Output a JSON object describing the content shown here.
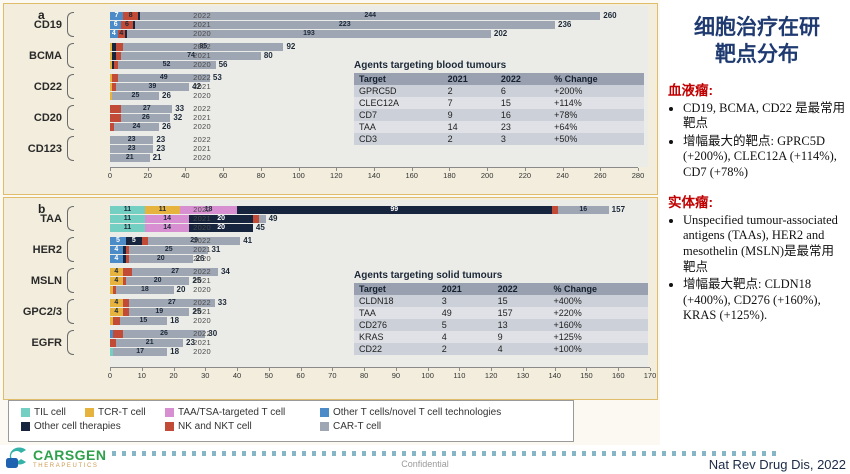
{
  "slide": {
    "panel_a_label": "a",
    "panel_b_label": "b",
    "confidential": "Confidential",
    "citation": "Nat Rev Drug Dis, 2022",
    "logo": {
      "name": "CARSGEN",
      "sub": "THERAPEUTICS"
    }
  },
  "right_panel": {
    "title_line1": "细胞治疗在研",
    "title_line2": "靶点分布",
    "sections": [
      {
        "heading": "血液瘤:",
        "bullets": [
          "CD19, BCMA, CD22 是最常用靶点",
          "增幅最大的靶点: GPRC5D (+200%), CLEC12A (+114%), CD7 (+78%)"
        ]
      },
      {
        "heading": "实体瘤:",
        "bullets": [
          "Unspecified tumour-associated antigens (TAAs), HER2 and mesothelin (MSLN)是最常用靶点",
          "增幅最大靶点: CLDN18 (+400%), CD276 (+160%), KRAS (+125%)."
        ]
      }
    ]
  },
  "colors": {
    "teal": "#72cfc2",
    "yellow": "#e6b33e",
    "pink": "#d78fd2",
    "blue": "#4b8bc8",
    "navy": "#17243d",
    "red": "#c24b38",
    "gray": "#9ea6b4",
    "title_navy": "#1e3a70",
    "section_red": "#c00000",
    "panel_border": "#e0bd6a",
    "panel_bg": "#f2eddc",
    "plot_bg": "#ebece8"
  },
  "legend": {
    "items": [
      {
        "color": "teal",
        "label": "TIL cell"
      },
      {
        "color": "yellow",
        "label": "TCR-T cell"
      },
      {
        "color": "pink",
        "label": "TAA/TSA-targeted T cell"
      },
      {
        "color": "blue",
        "label": "Other T cells/novel T cell technologies"
      },
      {
        "color": "navy",
        "label": "Other cell therapies"
      },
      {
        "color": "red",
        "label": "NK and NKT cell"
      },
      {
        "color": "gray",
        "label": "CAR-T cell"
      }
    ]
  },
  "chart_data": [
    {
      "id": "a",
      "type": "bar",
      "orientation": "horizontal",
      "stacked": true,
      "axis": {
        "min": 0,
        "max": 280,
        "step": 20
      },
      "inset_table": {
        "title": "Agents targeting blood tumours",
        "headers": [
          "Target",
          "2021",
          "2022",
          "% Change"
        ],
        "rows": [
          [
            "GPRC5D",
            "2",
            "6",
            "+200%"
          ],
          [
            "CLEC12A",
            "7",
            "15",
            "+114%"
          ],
          [
            "CD7",
            "9",
            "16",
            "+78%"
          ],
          [
            "TAA",
            "14",
            "23",
            "+64%"
          ],
          [
            "CD3",
            "2",
            "3",
            "+50%"
          ]
        ]
      },
      "groups": [
        {
          "name": "CD19",
          "rows": [
            {
              "year": "2022",
              "total": 260,
              "segments": [
                {
                  "color": "blue",
                  "value": 7,
                  "label": "7"
                },
                {
                  "color": "red",
                  "value": 8,
                  "label": "8"
                },
                {
                  "color": "navy",
                  "value": 1
                },
                {
                  "color": "gray",
                  "value": 244,
                  "label": "244"
                }
              ]
            },
            {
              "year": "2021",
              "total": 236,
              "segments": [
                {
                  "color": "blue",
                  "value": 6,
                  "label": "6"
                },
                {
                  "color": "red",
                  "value": 6,
                  "label": "6"
                },
                {
                  "color": "navy",
                  "value": 1
                },
                {
                  "color": "gray",
                  "value": 223,
                  "label": "223"
                }
              ]
            },
            {
              "year": "2020",
              "total": 202,
              "segments": [
                {
                  "color": "blue",
                  "value": 4,
                  "label": "4"
                },
                {
                  "color": "red",
                  "value": 4,
                  "label": "4"
                },
                {
                  "color": "navy",
                  "value": 1
                },
                {
                  "color": "gray",
                  "value": 193,
                  "label": "193"
                }
              ]
            }
          ]
        },
        {
          "name": "BCMA",
          "rows": [
            {
              "year": "2022",
              "total": 92,
              "segments": [
                {
                  "color": "yellow",
                  "value": 1
                },
                {
                  "color": "navy",
                  "value": 2
                },
                {
                  "color": "red",
                  "value": 4
                },
                {
                  "color": "gray",
                  "value": 85,
                  "label": "85"
                }
              ]
            },
            {
              "year": "2021",
              "total": 80,
              "segments": [
                {
                  "color": "yellow",
                  "value": 1
                },
                {
                  "color": "navy",
                  "value": 2
                },
                {
                  "color": "red",
                  "value": 3
                },
                {
                  "color": "gray",
                  "value": 74,
                  "label": "74"
                }
              ]
            },
            {
              "year": "2020",
              "total": 56,
              "segments": [
                {
                  "color": "yellow",
                  "value": 1
                },
                {
                  "color": "navy",
                  "value": 1
                },
                {
                  "color": "red",
                  "value": 2
                },
                {
                  "color": "gray",
                  "value": 52,
                  "label": "52"
                }
              ]
            }
          ]
        },
        {
          "name": "CD22",
          "rows": [
            {
              "year": "2022",
              "total": 53,
              "segments": [
                {
                  "color": "yellow",
                  "value": 1
                },
                {
                  "color": "red",
                  "value": 3
                },
                {
                  "color": "gray",
                  "value": 49,
                  "label": "49"
                }
              ]
            },
            {
              "year": "2021",
              "total": 42,
              "segments": [
                {
                  "color": "yellow",
                  "value": 1
                },
                {
                  "color": "red",
                  "value": 2
                },
                {
                  "color": "gray",
                  "value": 39,
                  "label": "39"
                }
              ]
            },
            {
              "year": "2020",
              "total": 26,
              "segments": [
                {
                  "color": "yellow",
                  "value": 1
                },
                {
                  "color": "gray",
                  "value": 25,
                  "label": "25"
                }
              ]
            }
          ]
        },
        {
          "name": "CD20",
          "rows": [
            {
              "year": "2022",
              "total": 33,
              "segments": [
                {
                  "color": "red",
                  "value": 6
                },
                {
                  "color": "gray",
                  "value": 27,
                  "label": "27"
                }
              ]
            },
            {
              "year": "2021",
              "total": 32,
              "segments": [
                {
                  "color": "red",
                  "value": 6
                },
                {
                  "color": "gray",
                  "value": 26,
                  "label": "26"
                }
              ]
            },
            {
              "year": "2020",
              "total": 26,
              "segments": [
                {
                  "color": "red",
                  "value": 2
                },
                {
                  "color": "gray",
                  "value": 24,
                  "label": "24"
                }
              ]
            }
          ]
        },
        {
          "name": "CD123",
          "rows": [
            {
              "year": "2022",
              "total": 23,
              "segments": [
                {
                  "color": "gray",
                  "value": 23,
                  "label": "23"
                }
              ]
            },
            {
              "year": "2021",
              "total": 23,
              "segments": [
                {
                  "color": "gray",
                  "value": 23,
                  "label": "23"
                }
              ]
            },
            {
              "year": "2020",
              "total": 21,
              "segments": [
                {
                  "color": "gray",
                  "value": 21,
                  "label": "21"
                }
              ]
            }
          ]
        }
      ]
    },
    {
      "id": "b",
      "type": "bar",
      "orientation": "horizontal",
      "stacked": true,
      "axis": {
        "min": 0,
        "max": 170,
        "step": 10
      },
      "inset_table": {
        "title": "Agents targeting solid tumours",
        "headers": [
          "Target",
          "2021",
          "2022",
          "% Change"
        ],
        "rows": [
          [
            "CLDN18",
            "3",
            "15",
            "+400%"
          ],
          [
            "TAA",
            "49",
            "157",
            "+220%"
          ],
          [
            "CD276",
            "5",
            "13",
            "+160%"
          ],
          [
            "KRAS",
            "4",
            "9",
            "+125%"
          ],
          [
            "CD22",
            "2",
            "4",
            "+100%"
          ]
        ]
      },
      "groups": [
        {
          "name": "TAA",
          "rows": [
            {
              "year": "2022",
              "total": 157,
              "segments": [
                {
                  "color": "teal",
                  "value": 11,
                  "label": "11"
                },
                {
                  "color": "yellow",
                  "value": 11,
                  "label": "11"
                },
                {
                  "color": "pink",
                  "value": 18,
                  "label": "18"
                },
                {
                  "color": "navy",
                  "value": 99,
                  "label": "99"
                },
                {
                  "color": "red",
                  "value": 2
                },
                {
                  "color": "gray",
                  "value": 16,
                  "label": "16"
                }
              ]
            },
            {
              "year": "2021",
              "total": 49,
              "segments": [
                {
                  "color": "teal",
                  "value": 11,
                  "label": "11"
                },
                {
                  "color": "pink",
                  "value": 14,
                  "label": "14"
                },
                {
                  "color": "navy",
                  "value": 20,
                  "label": "20"
                },
                {
                  "color": "red",
                  "value": 2
                },
                {
                  "color": "gray",
                  "value": 2
                }
              ]
            },
            {
              "year": "2020",
              "total": 45,
              "segments": [
                {
                  "color": "teal",
                  "value": 11,
                  "label": "11"
                },
                {
                  "color": "pink",
                  "value": 14,
                  "label": "14"
                },
                {
                  "color": "navy",
                  "value": 20,
                  "label": "20"
                }
              ]
            }
          ]
        },
        {
          "name": "HER2",
          "rows": [
            {
              "year": "2022",
              "total": 41,
              "segments": [
                {
                  "color": "blue",
                  "value": 5,
                  "label": "5"
                },
                {
                  "color": "navy",
                  "value": 5,
                  "label": "5"
                },
                {
                  "color": "red",
                  "value": 2
                },
                {
                  "color": "gray",
                  "value": 29,
                  "label": "29"
                }
              ]
            },
            {
              "year": "2021",
              "total": 31,
              "segments": [
                {
                  "color": "blue",
                  "value": 4,
                  "label": "4"
                },
                {
                  "color": "navy",
                  "value": 1
                },
                {
                  "color": "red",
                  "value": 1
                },
                {
                  "color": "gray",
                  "value": 25,
                  "label": "25"
                }
              ]
            },
            {
              "year": "2020",
              "total": 26,
              "segments": [
                {
                  "color": "blue",
                  "value": 4,
                  "label": "4"
                },
                {
                  "color": "navy",
                  "value": 1
                },
                {
                  "color": "red",
                  "value": 1
                },
                {
                  "color": "gray",
                  "value": 20,
                  "label": "20"
                }
              ]
            }
          ]
        },
        {
          "name": "MSLN",
          "rows": [
            {
              "year": "2022",
              "total": 34,
              "segments": [
                {
                  "color": "yellow",
                  "value": 4,
                  "label": "4"
                },
                {
                  "color": "red",
                  "value": 3
                },
                {
                  "color": "gray",
                  "value": 27,
                  "label": "27"
                }
              ]
            },
            {
              "year": "2021",
              "total": 25,
              "segments": [
                {
                  "color": "yellow",
                  "value": 4,
                  "label": "4"
                },
                {
                  "color": "red",
                  "value": 1
                },
                {
                  "color": "gray",
                  "value": 20,
                  "label": "20"
                }
              ]
            },
            {
              "year": "2020",
              "total": 20,
              "segments": [
                {
                  "color": "yellow",
                  "value": 1
                },
                {
                  "color": "red",
                  "value": 1
                },
                {
                  "color": "gray",
                  "value": 18,
                  "label": "18"
                }
              ]
            }
          ]
        },
        {
          "name": "GPC2/3",
          "rows": [
            {
              "year": "2022",
              "total": 33,
              "segments": [
                {
                  "color": "yellow",
                  "value": 4,
                  "label": "4"
                },
                {
                  "color": "red",
                  "value": 2
                },
                {
                  "color": "gray",
                  "value": 27,
                  "label": "27"
                }
              ]
            },
            {
              "year": "2021",
              "total": 25,
              "segments": [
                {
                  "color": "yellow",
                  "value": 4,
                  "label": "4"
                },
                {
                  "color": "red",
                  "value": 2
                },
                {
                  "color": "gray",
                  "value": 19,
                  "label": "19"
                }
              ]
            },
            {
              "year": "2020",
              "total": 18,
              "segments": [
                {
                  "color": "yellow",
                  "value": 1
                },
                {
                  "color": "red",
                  "value": 2
                },
                {
                  "color": "gray",
                  "value": 15,
                  "label": "15"
                }
              ]
            }
          ]
        },
        {
          "name": "EGFR",
          "rows": [
            {
              "year": "2022",
              "total": 30,
              "segments": [
                {
                  "color": "blue",
                  "value": 1
                },
                {
                  "color": "red",
                  "value": 3
                },
                {
                  "color": "gray",
                  "value": 26,
                  "label": "26"
                }
              ]
            },
            {
              "year": "2021",
              "total": 23,
              "segments": [
                {
                  "color": "red",
                  "value": 2
                },
                {
                  "color": "gray",
                  "value": 21,
                  "label": "21"
                }
              ]
            },
            {
              "year": "2020",
              "total": 18,
              "segments": [
                {
                  "color": "teal",
                  "value": 1
                },
                {
                  "color": "gray",
                  "value": 17,
                  "label": "17"
                }
              ]
            }
          ]
        }
      ]
    }
  ]
}
